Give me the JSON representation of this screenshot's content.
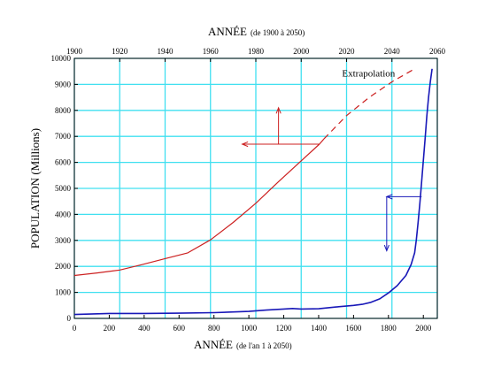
{
  "chart_data": {
    "type": "line",
    "top_axis": {
      "label_main": "ANNÉE",
      "label_sub": "(de 1900 à 2050)",
      "range": [
        1900,
        2060
      ],
      "ticks": [
        1900,
        1920,
        1940,
        1960,
        1980,
        2000,
        2020,
        2040,
        2060
      ],
      "tick_labels": [
        "1900",
        "1920",
        "1940",
        "1960",
        "1980",
        "2000",
        "2020",
        "2040",
        "2060"
      ]
    },
    "bottom_axis": {
      "label_main": "ANNÉE",
      "label_sub": "(de l'an 1 à 2050)",
      "range": [
        0,
        2080
      ],
      "ticks": [
        0,
        200,
        400,
        600,
        800,
        1000,
        1200,
        1400,
        1600,
        1800,
        2000
      ],
      "tick_labels": [
        "0",
        "200",
        "400",
        "600",
        "800",
        "1000",
        "1200",
        "1400",
        "1600",
        "1800",
        "2000"
      ]
    },
    "y_axis": {
      "label": "POPULATION (Millions)",
      "range": [
        0,
        10000
      ],
      "ticks": [
        0,
        1000,
        2000,
        3000,
        4000,
        5000,
        6000,
        7000,
        8000,
        9000,
        10000
      ],
      "tick_labels": [
        "0",
        "1000",
        "2000",
        "3000",
        "4000",
        "5000",
        "6000",
        "7000",
        "8000",
        "9000",
        "10000"
      ]
    },
    "grid": true,
    "colors": {
      "grid": "#40e0f0",
      "red": "#cc2020",
      "blue": "#1818b8"
    },
    "series": [
      {
        "axis": "top",
        "color": "red",
        "style": "solid",
        "x": [
          1900,
          1910,
          1920,
          1930,
          1940,
          1950,
          1960,
          1970,
          1980,
          1990,
          2000,
          2008,
          2010
        ],
        "y": [
          1650,
          1750,
          1860,
          2070,
          2300,
          2520,
          3020,
          3690,
          4430,
          5260,
          6060,
          6700,
          6900
        ]
      },
      {
        "axis": "top",
        "color": "red",
        "style": "dashed",
        "x": [
          2010,
          2020,
          2030,
          2040,
          2050
        ],
        "y": [
          6900,
          7800,
          8500,
          9100,
          9600
        ]
      },
      {
        "axis": "bottom",
        "color": "blue",
        "style": "solid",
        "x": [
          0,
          200,
          400,
          600,
          800,
          1000,
          1100,
          1200,
          1250,
          1300,
          1400,
          1500,
          1600,
          1650,
          1700,
          1750,
          1800,
          1850,
          1900,
          1930,
          1950,
          1960,
          1970,
          1980,
          1990,
          2000,
          2010,
          2020,
          2030,
          2040,
          2050
        ],
        "y": [
          150,
          190,
          190,
          200,
          220,
          270,
          320,
          360,
          380,
          360,
          370,
          440,
          500,
          540,
          620,
          750,
          980,
          1260,
          1650,
          2070,
          2520,
          3020,
          3690,
          4430,
          5260,
          6060,
          6900,
          7800,
          8500,
          9100,
          9600
        ]
      }
    ],
    "annotations": [
      {
        "text": "Extrapolation",
        "x": 2018,
        "y": 9300,
        "axis": "top"
      }
    ],
    "arrows": [
      {
        "color": "red",
        "from_x": 1990,
        "from_y": 6700,
        "to_x": 1990,
        "to_y": 8100,
        "axis": "top"
      },
      {
        "color": "red",
        "from_x": 2008,
        "from_y": 6700,
        "to_x": 1974,
        "to_y": 6700,
        "axis": "top"
      },
      {
        "color": "blue",
        "from_x": 1990,
        "from_y": 4680,
        "to_x": 1790,
        "to_y": 4680,
        "axis": "bottom"
      },
      {
        "color": "blue",
        "from_x": 1790,
        "from_y": 4680,
        "to_x": 1790,
        "to_y": 2600,
        "axis": "bottom"
      }
    ]
  }
}
